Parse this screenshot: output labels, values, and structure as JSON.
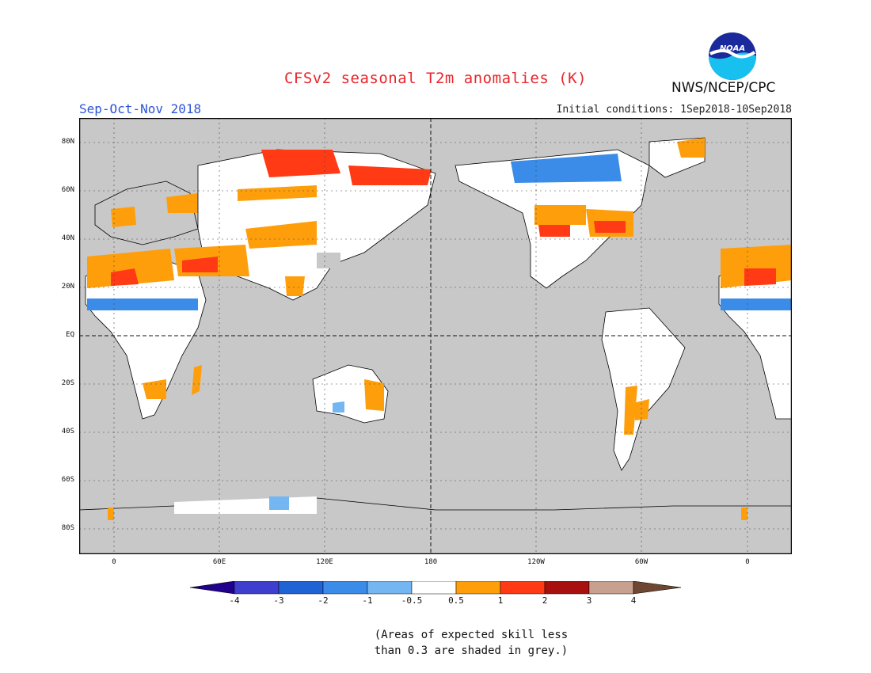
{
  "header": {
    "title": "CFSv2 seasonal T2m anomalies (K)",
    "season": "Sep-Oct-Nov 2018",
    "initial_conditions": "Initial conditions: 1Sep2018-10Sep2018",
    "agency": "NWS/NCEP/CPC",
    "logo_text": "NOAA"
  },
  "map": {
    "projection": "cylindrical equidistant",
    "lon_center": 180,
    "background_color": "#c8c8c8",
    "lat_ticks": [
      "80N",
      "60N",
      "40N",
      "20N",
      "EQ",
      "20S",
      "40S",
      "60S",
      "80S"
    ],
    "lon_ticks": [
      "0",
      "60E",
      "120E",
      "180",
      "120W",
      "60W",
      "0"
    ]
  },
  "colorbar": {
    "labels": [
      "-4",
      "-3",
      "-2",
      "-1",
      "-0.5",
      "0.5",
      "1",
      "2",
      "3",
      "4"
    ],
    "colors": [
      "#20008c",
      "#3e3ecf",
      "#1f63d4",
      "#3b8ce8",
      "#74b6f2",
      "#ffffff",
      "#ff9e0b",
      "#ff3a14",
      "#a80f0f",
      "#c8a090",
      "#6e4632"
    ]
  },
  "note": {
    "line1": "(Areas of expected skill less",
    "line2": "than 0.3 are shaded in grey.)"
  }
}
